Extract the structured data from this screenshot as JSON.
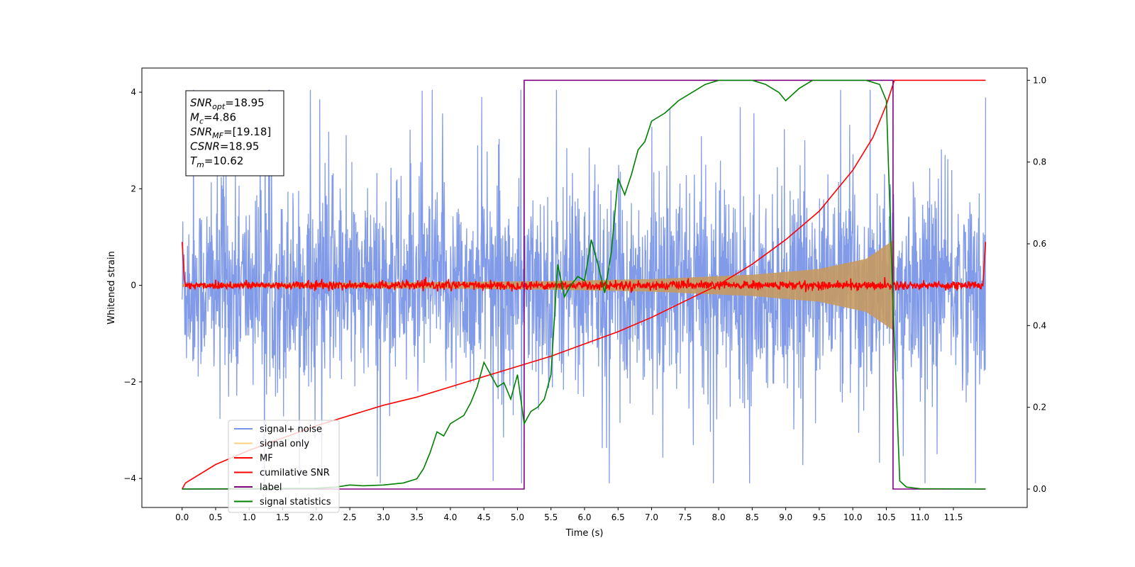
{
  "chart_data": {
    "type": "line",
    "xlabel": "Time (s)",
    "ylabel": "Whitened strain",
    "xlim": [
      -0.6,
      12.6
    ],
    "ylim": [
      -4.6,
      4.5
    ],
    "y2lim": [
      -0.045,
      1.03
    ],
    "xticks": [
      "0.0",
      "0.5",
      "1.0",
      "1.5",
      "2.0",
      "2.5",
      "3.0",
      "3.5",
      "4.0",
      "4.5",
      "5.0",
      "5.5",
      "6.0",
      "6.5",
      "7.0",
      "7.5",
      "8.0",
      "8.5",
      "9.0",
      "9.5",
      "10.0",
      "10.5",
      "11.0",
      "11.5"
    ],
    "yticks": [
      "4",
      "2",
      "0",
      "−2",
      "−4"
    ],
    "y2ticks": [
      "1.0",
      "0.8",
      "0.6",
      "0.4",
      "0.2",
      "0.0"
    ],
    "legend_position": "lower-left",
    "grid": false,
    "annotation": {
      "lines": [
        {
          "base": "SNR",
          "sub": "opt",
          "value": "=18.95"
        },
        {
          "base": "M",
          "sub": "c",
          "value": "=4.86"
        },
        {
          "base": "SNR",
          "sub": "MF",
          "value": "=[19.18]"
        },
        {
          "base": "CSNR",
          "sub": "",
          "value": "=18.95"
        },
        {
          "base": "T",
          "sub": "m",
          "value": "=10.62"
        }
      ]
    },
    "series": [
      {
        "name": "signal+ noise",
        "color": "#7b96e8",
        "axis": "left",
        "noise_amplitude": 2.6,
        "x_range": [
          0.0,
          11.98
        ]
      },
      {
        "name": "signal only",
        "color": "#ffd080",
        "axis": "left",
        "envelope": [
          [
            0.0,
            0.03
          ],
          [
            2.0,
            0.05
          ],
          [
            4.0,
            0.07
          ],
          [
            5.5,
            0.09
          ],
          [
            7.0,
            0.13
          ],
          [
            8.5,
            0.22
          ],
          [
            9.5,
            0.34
          ],
          [
            10.2,
            0.55
          ],
          [
            10.62,
            0.95
          ]
        ]
      },
      {
        "name": "MF",
        "color": "#ff0000",
        "axis": "left",
        "noise_amplitude": 0.08,
        "x_range": [
          0.0,
          11.98
        ]
      },
      {
        "name": "cumilative SNR",
        "color": "#ff0000",
        "axis": "right",
        "x": [
          0.0,
          0.05,
          0.5,
          1.0,
          1.5,
          2.0,
          2.5,
          3.0,
          3.5,
          4.0,
          4.5,
          5.0,
          5.5,
          6.0,
          6.5,
          7.0,
          7.5,
          8.0,
          8.5,
          9.0,
          9.5,
          10.0,
          10.3,
          10.5,
          10.62,
          11.98
        ],
        "y": [
          0.0,
          0.015,
          0.06,
          0.095,
          0.125,
          0.155,
          0.18,
          0.205,
          0.225,
          0.25,
          0.275,
          0.3,
          0.325,
          0.355,
          0.385,
          0.42,
          0.46,
          0.5,
          0.55,
          0.61,
          0.68,
          0.78,
          0.86,
          0.94,
          1.0,
          1.0
        ]
      },
      {
        "name": "label",
        "color": "#800080",
        "axis": "right",
        "x": [
          0.0,
          5.1,
          5.1,
          10.6,
          10.6,
          11.98
        ],
        "y": [
          0.0,
          0.0,
          1.0,
          1.0,
          0.0,
          0.0
        ]
      },
      {
        "name": "signal statistics",
        "color": "#008000",
        "axis": "right",
        "x": [
          0.0,
          1.0,
          2.0,
          2.3,
          2.5,
          2.7,
          3.0,
          3.3,
          3.5,
          3.6,
          3.7,
          3.8,
          3.9,
          4.0,
          4.1,
          4.2,
          4.3,
          4.4,
          4.5,
          4.6,
          4.7,
          4.8,
          4.9,
          5.0,
          5.1,
          5.2,
          5.3,
          5.4,
          5.5,
          5.6,
          5.7,
          5.8,
          5.9,
          6.0,
          6.1,
          6.2,
          6.3,
          6.4,
          6.5,
          6.6,
          6.7,
          6.8,
          6.9,
          7.0,
          7.2,
          7.4,
          7.6,
          7.8,
          8.0,
          8.2,
          8.5,
          8.7,
          8.9,
          9.0,
          9.2,
          9.4,
          9.6,
          9.8,
          10.0,
          10.2,
          10.4,
          10.5,
          10.6,
          10.7,
          10.8,
          11.0,
          11.98
        ],
        "y": [
          0.0,
          0.001,
          0.002,
          0.005,
          0.01,
          0.008,
          0.01,
          0.015,
          0.025,
          0.05,
          0.09,
          0.14,
          0.13,
          0.16,
          0.17,
          0.18,
          0.21,
          0.25,
          0.31,
          0.28,
          0.25,
          0.26,
          0.22,
          0.28,
          0.16,
          0.19,
          0.2,
          0.22,
          0.28,
          0.55,
          0.47,
          0.5,
          0.52,
          0.51,
          0.61,
          0.55,
          0.48,
          0.58,
          0.76,
          0.72,
          0.77,
          0.83,
          0.85,
          0.9,
          0.92,
          0.95,
          0.97,
          0.99,
          1.0,
          1.0,
          1.0,
          0.99,
          0.97,
          0.95,
          0.98,
          1.0,
          1.0,
          1.0,
          1.0,
          1.0,
          0.99,
          0.95,
          0.45,
          0.02,
          0.005,
          0.001,
          0.0
        ]
      }
    ]
  }
}
